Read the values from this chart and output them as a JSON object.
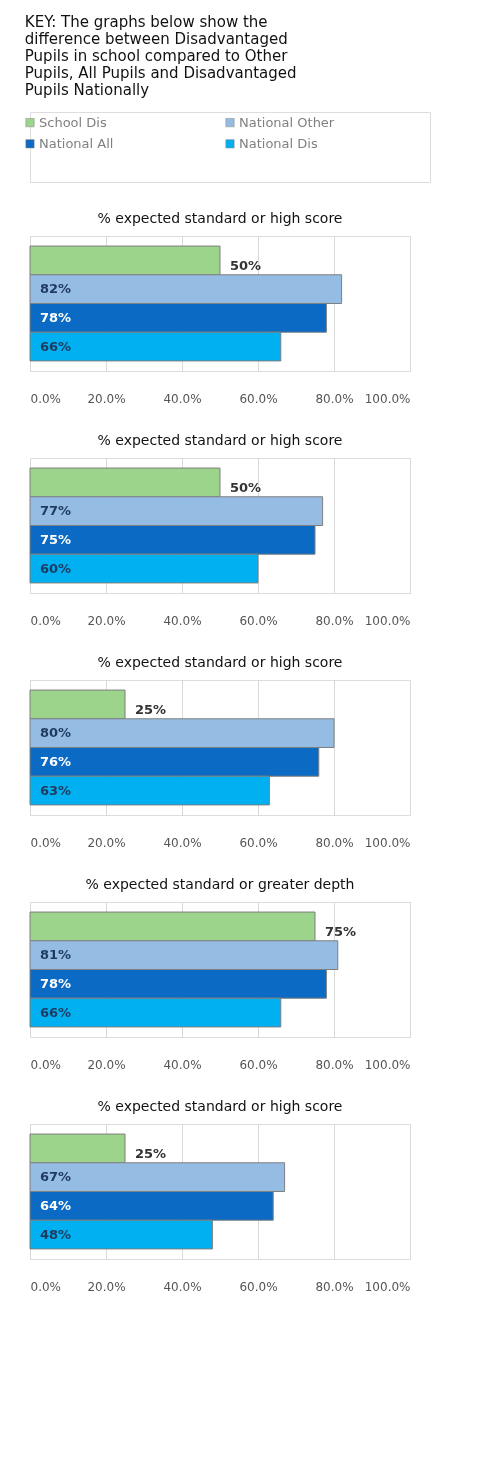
{
  "chart_data": [
    {
      "type": "other",
      "title": "KEY: The graphs below show the difference between Disadvantaged Pupils in school compared to Other Pupils, All Pupils and Disadvantaged Pupils Nationally",
      "series": [
        {
          "name": "School Dis",
          "color": "#9bd48a"
        },
        {
          "name": "National Other",
          "color": "#95bde4"
        },
        {
          "name": "National All",
          "color": "#0a6ac4"
        },
        {
          "name": "National Dis",
          "color": "#00b0f0"
        }
      ]
    },
    {
      "type": "bar",
      "orientation": "horizontal",
      "title": "% expected standard or high score",
      "categories": [
        null,
        null,
        null,
        null
      ],
      "values": [
        50,
        82,
        78,
        66
      ],
      "value_labels": [
        "50%",
        "82%",
        "78%",
        "66%"
      ],
      "colors": [
        "#9bd48a",
        "#95bde4",
        "#0a6ac4",
        "#00b0f0"
      ],
      "xlim": [
        0,
        100
      ],
      "xticks": [
        {
          "value": 0,
          "label": "0.0%"
        },
        {
          "value": 20,
          "label": "20.0%"
        },
        {
          "value": 40,
          "label": "40.0%"
        },
        {
          "value": 60,
          "label": "60.0%"
        },
        {
          "value": 80,
          "label": "80.0%"
        },
        {
          "value": 100,
          "label": "100.0%"
        }
      ],
      "grid": "x"
    },
    {
      "type": "bar",
      "orientation": "horizontal",
      "title": "% expected standard or high score",
      "categories": [
        null,
        null,
        null,
        null
      ],
      "values": [
        50,
        77,
        75,
        60
      ],
      "value_labels": [
        "50%",
        "77%",
        "75%",
        "60%"
      ],
      "colors": [
        "#9bd48a",
        "#95bde4",
        "#0a6ac4",
        "#00b0f0"
      ],
      "xlim": [
        0,
        100
      ],
      "xticks": [
        {
          "value": 0,
          "label": "0.0%"
        },
        {
          "value": 20,
          "label": "20.0%"
        },
        {
          "value": 40,
          "label": "40.0%"
        },
        {
          "value": 60,
          "label": "60.0%"
        },
        {
          "value": 80,
          "label": "80.0%"
        },
        {
          "value": 100,
          "label": "100.0%"
        }
      ],
      "grid": "x"
    },
    {
      "type": "bar",
      "orientation": "horizontal",
      "title": "% expected standard or high score",
      "categories": [
        null,
        null,
        null,
        null
      ],
      "values": [
        25,
        80,
        76,
        63
      ],
      "value_labels": [
        "25%",
        "80%",
        "76%",
        "63%"
      ],
      "colors": [
        "#9bd48a",
        "#95bde4",
        "#0a6ac4",
        "#00b0f0"
      ],
      "xlim": [
        0,
        100
      ],
      "xticks": [
        {
          "value": 0,
          "label": "0.0%"
        },
        {
          "value": 20,
          "label": "20.0%"
        },
        {
          "value": 40,
          "label": "40.0%"
        },
        {
          "value": 60,
          "label": "60.0%"
        },
        {
          "value": 80,
          "label": "80.0%"
        },
        {
          "value": 100,
          "label": "100.0%"
        }
      ],
      "grid": "x"
    },
    {
      "type": "bar",
      "orientation": "horizontal",
      "title": "% expected standard or greater depth",
      "categories": [
        null,
        null,
        null,
        null
      ],
      "values": [
        75,
        81,
        78,
        66
      ],
      "value_labels": [
        "75%",
        "81%",
        "78%",
        "66%"
      ],
      "colors": [
        "#9bd48a",
        "#95bde4",
        "#0a6ac4",
        "#00b0f0"
      ],
      "xlim": [
        0,
        100
      ],
      "xticks": [
        {
          "value": 0,
          "label": "0.0%"
        },
        {
          "value": 20,
          "label": "20.0%"
        },
        {
          "value": 40,
          "label": "40.0%"
        },
        {
          "value": 60,
          "label": "60.0%"
        },
        {
          "value": 80,
          "label": "80.0%"
        },
        {
          "value": 100,
          "label": "100.0%"
        }
      ],
      "grid": "x"
    },
    {
      "type": "bar",
      "orientation": "horizontal",
      "title": "% expected standard or high score",
      "categories": [
        null,
        null,
        null,
        null
      ],
      "values": [
        25,
        67,
        64,
        48
      ],
      "value_labels": [
        "25%",
        "67%",
        "64%",
        "48%"
      ],
      "colors": [
        "#9bd48a",
        "#95bde4",
        "#0a6ac4",
        "#00b0f0"
      ],
      "xlim": [
        0,
        100
      ],
      "xticks": [
        {
          "value": 0,
          "label": "0.0%"
        },
        {
          "value": 20,
          "label": "20.0%"
        },
        {
          "value": 40,
          "label": "40.0%"
        },
        {
          "value": 60,
          "label": "60.0%"
        },
        {
          "value": 80,
          "label": "80.0%"
        },
        {
          "value": 100,
          "label": "100.0%"
        }
      ],
      "grid": "x"
    }
  ]
}
